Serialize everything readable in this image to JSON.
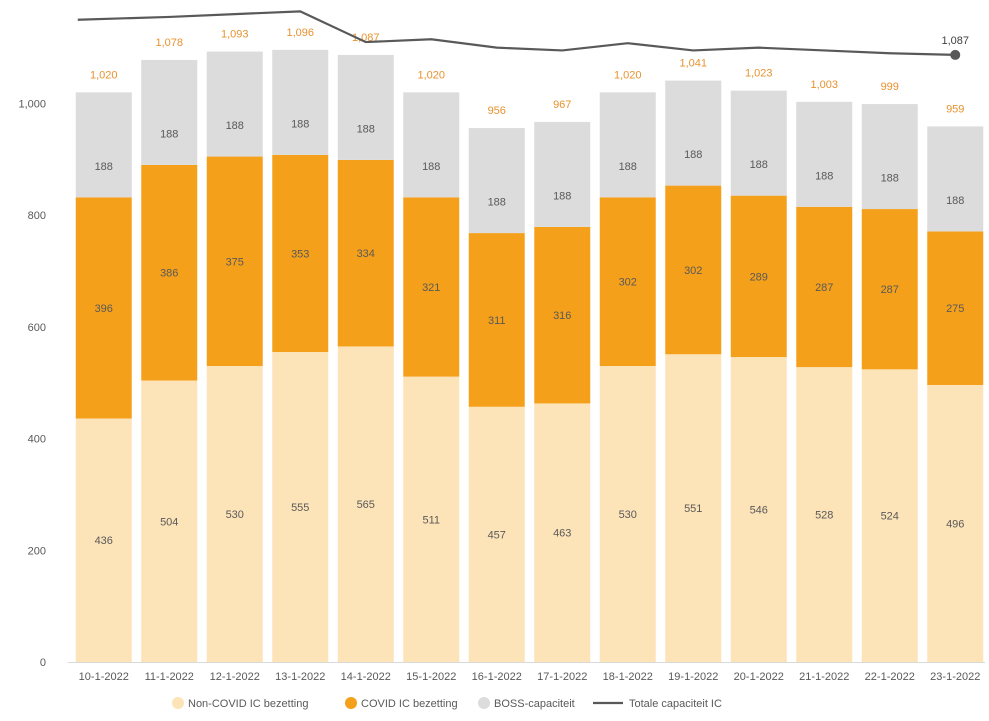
{
  "chart_data": {
    "type": "bar",
    "stacked": true,
    "categories": [
      "10-1-2022",
      "11-1-2022",
      "12-1-2022",
      "13-1-2022",
      "14-1-2022",
      "15-1-2022",
      "16-1-2022",
      "17-1-2022",
      "18-1-2022",
      "19-1-2022",
      "20-1-2022",
      "21-1-2022",
      "22-1-2022",
      "23-1-2022"
    ],
    "series": [
      {
        "name": "Non-COVID IC bezetting",
        "color": "#fde4b8",
        "values": [
          436,
          504,
          530,
          555,
          565,
          511,
          457,
          463,
          530,
          551,
          546,
          528,
          524,
          496
        ]
      },
      {
        "name": "COVID IC bezetting",
        "color": "#f5a01a",
        "values": [
          396,
          386,
          375,
          353,
          334,
          321,
          311,
          316,
          302,
          302,
          289,
          287,
          287,
          275
        ]
      },
      {
        "name": "BOSS-capaciteit",
        "color": "#dcdcdc",
        "values": [
          188,
          188,
          188,
          188,
          188,
          188,
          188,
          188,
          188,
          188,
          188,
          188,
          188,
          188
        ]
      }
    ],
    "totals": [
      1020,
      1078,
      1093,
      1096,
      1087,
      1020,
      956,
      967,
      1020,
      1041,
      1023,
      1003,
      999,
      959
    ],
    "total_labels": [
      "1,020",
      "1,078",
      "1,093",
      "1,096",
      "1,087",
      "1,020",
      "956",
      "967",
      "1,020",
      "1,041",
      "1,023",
      "1,003",
      "999",
      "959"
    ],
    "line_series": {
      "name": "Totale capaciteit IC",
      "color": "#595959",
      "type": "line",
      "values": [
        1150,
        1155,
        1160,
        1165,
        1110,
        1115,
        1100,
        1095,
        1108,
        1095,
        1100,
        1095,
        1090,
        1087
      ],
      "end_label": "1,087"
    },
    "title": "",
    "xlabel": "",
    "ylabel": "",
    "ylim": [
      0,
      1200
    ],
    "yticks": [
      0,
      200,
      400,
      600,
      800,
      1000
    ],
    "ytick_labels": [
      "0",
      "200",
      "400",
      "600",
      "800",
      "1,000"
    ],
    "grid": false,
    "legend_position": "bottom"
  }
}
